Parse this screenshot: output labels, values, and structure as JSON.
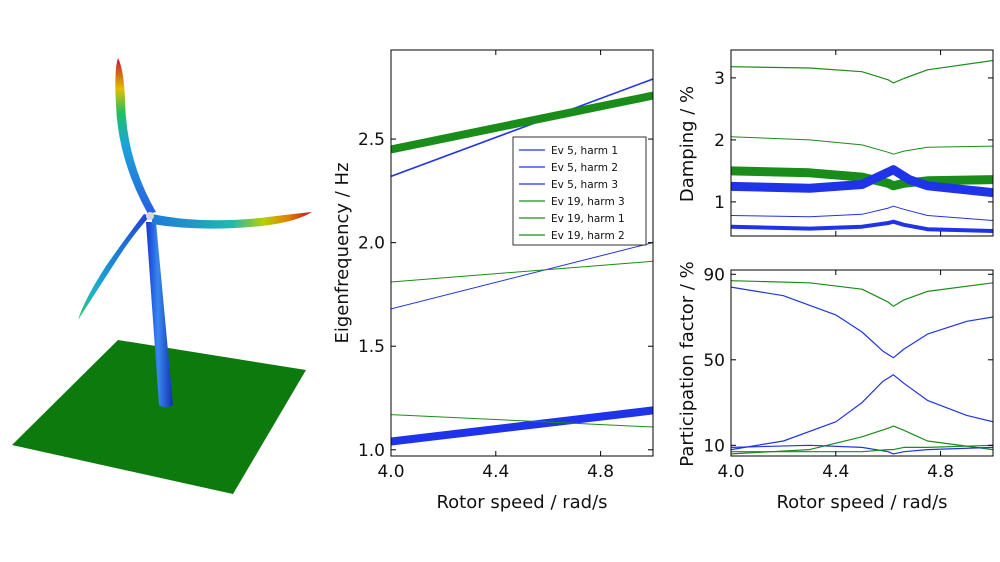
{
  "colors": {
    "blue": "#1f33e8",
    "green": "#1a8c1a",
    "ground": "#0d7a0d"
  },
  "turbine": {
    "icon": "wind-turbine-mode-shape-icon"
  },
  "chart_data": [
    {
      "type": "line",
      "ylabel": "Eigenfrequency / Hz",
      "xlabel": "Rotor speed / rad/s",
      "xlim": [
        4.0,
        5.0
      ],
      "ylim": [
        0.97,
        2.93
      ],
      "xticks": [
        "4.0",
        "4.4",
        "4.8"
      ],
      "xtick_values": [
        4.0,
        4.4,
        4.8
      ],
      "yticks": [
        "1.0",
        "1.5",
        "2.0",
        "2.5"
      ],
      "ytick_values": [
        1.0,
        1.5,
        2.0,
        2.5
      ],
      "legend_position": "upper-right",
      "legend": [
        "Ev 5, harm 1",
        "Ev 5, harm 2",
        "Ev 5, harm 3",
        "Ev 19, harm 3",
        "Ev 19, harm 1",
        "Ev 19, harm 2"
      ],
      "series": [
        {
          "name": "Ev 5, harm 1",
          "color": "blue",
          "width": 1.6,
          "x": [
            4.0,
            5.0
          ],
          "y": [
            2.32,
            2.79
          ]
        },
        {
          "name": "Ev 5, harm 2",
          "color": "blue",
          "width": 1.0,
          "x": [
            4.0,
            5.0
          ],
          "y": [
            1.68,
            2.0
          ]
        },
        {
          "name": "Ev 5, harm 3",
          "color": "blue",
          "width": 8,
          "x": [
            4.0,
            5.0
          ],
          "y": [
            1.04,
            1.19
          ]
        },
        {
          "name": "Ev 19, harm 3",
          "color": "green",
          "width": 8,
          "x": [
            4.0,
            5.0
          ],
          "y": [
            2.45,
            2.71
          ]
        },
        {
          "name": "Ev 19, harm 1",
          "color": "green",
          "width": 1.0,
          "x": [
            4.0,
            5.0
          ],
          "y": [
            1.81,
            1.91
          ]
        },
        {
          "name": "Ev 19, harm 2",
          "color": "green",
          "width": 1.0,
          "x": [
            4.0,
            5.0
          ],
          "y": [
            1.17,
            1.11
          ]
        }
      ]
    },
    {
      "type": "line",
      "ylabel": "Damping / %",
      "xlim": [
        4.0,
        5.0
      ],
      "ylim": [
        0.45,
        3.45
      ],
      "yticks": [
        "1",
        "2",
        "3"
      ],
      "ytick_values": [
        1,
        2,
        3
      ],
      "series": [
        {
          "color": "green",
          "width": 1.2,
          "x": [
            4.0,
            4.3,
            4.5,
            4.6,
            4.62,
            4.66,
            4.75,
            5.0
          ],
          "y": [
            3.18,
            3.16,
            3.1,
            2.97,
            2.92,
            2.99,
            3.13,
            3.28
          ]
        },
        {
          "color": "green",
          "width": 1.0,
          "x": [
            4.0,
            4.3,
            4.5,
            4.6,
            4.62,
            4.66,
            4.75,
            5.0
          ],
          "y": [
            2.05,
            2.0,
            1.92,
            1.8,
            1.77,
            1.82,
            1.88,
            1.9
          ]
        },
        {
          "color": "green",
          "width": 9,
          "x": [
            4.0,
            4.3,
            4.5,
            4.6,
            4.62,
            4.66,
            4.75,
            5.0
          ],
          "y": [
            1.5,
            1.47,
            1.4,
            1.3,
            1.26,
            1.3,
            1.34,
            1.36
          ]
        },
        {
          "color": "blue",
          "width": 9,
          "x": [
            4.0,
            4.3,
            4.5,
            4.56,
            4.62,
            4.68,
            4.75,
            5.0
          ],
          "y": [
            1.25,
            1.22,
            1.28,
            1.4,
            1.52,
            1.36,
            1.26,
            1.15
          ]
        },
        {
          "color": "blue",
          "width": 1.0,
          "x": [
            4.0,
            4.3,
            4.5,
            4.6,
            4.62,
            4.66,
            4.75,
            5.0
          ],
          "y": [
            0.78,
            0.76,
            0.8,
            0.9,
            0.93,
            0.88,
            0.78,
            0.7
          ]
        },
        {
          "color": "blue",
          "width": 4,
          "x": [
            4.0,
            4.3,
            4.5,
            4.6,
            4.62,
            4.66,
            4.75,
            5.0
          ],
          "y": [
            0.6,
            0.57,
            0.6,
            0.66,
            0.68,
            0.63,
            0.56,
            0.53
          ]
        }
      ]
    },
    {
      "type": "line",
      "ylabel": "Participation factor / %",
      "xlabel": "Rotor speed / rad/s",
      "xlim": [
        4.0,
        5.0
      ],
      "ylim": [
        5,
        92
      ],
      "xticks": [
        "4.0",
        "4.4",
        "4.8"
      ],
      "xtick_values": [
        4.0,
        4.4,
        4.8
      ],
      "yticks": [
        "10",
        "50",
        "90"
      ],
      "ytick_values": [
        10,
        50,
        90
      ],
      "series": [
        {
          "color": "green",
          "width": 1.2,
          "x": [
            4.0,
            4.3,
            4.5,
            4.6,
            4.62,
            4.66,
            4.75,
            5.0
          ],
          "y": [
            87,
            86,
            83,
            77,
            75,
            78,
            82,
            86
          ]
        },
        {
          "color": "blue",
          "width": 1.2,
          "x": [
            4.0,
            4.2,
            4.4,
            4.5,
            4.58,
            4.62,
            4.66,
            4.75,
            4.9,
            5.0
          ],
          "y": [
            84,
            80,
            71,
            63,
            54,
            51,
            55,
            62,
            68,
            70
          ]
        },
        {
          "color": "blue",
          "width": 1.2,
          "x": [
            4.0,
            4.2,
            4.4,
            4.5,
            4.58,
            4.62,
            4.66,
            4.75,
            4.9,
            5.0
          ],
          "y": [
            8,
            12,
            21,
            30,
            40,
            43,
            39,
            31,
            24,
            21
          ]
        },
        {
          "color": "green",
          "width": 1.2,
          "x": [
            4.0,
            4.3,
            4.5,
            4.6,
            4.62,
            4.66,
            4.75,
            5.0
          ],
          "y": [
            6,
            8,
            14,
            18,
            19,
            17,
            12,
            8
          ]
        },
        {
          "color": "blue",
          "width": 1.2,
          "x": [
            4.0,
            4.3,
            4.5,
            4.6,
            4.62,
            4.66,
            4.75,
            5.0
          ],
          "y": [
            9,
            10,
            9,
            7,
            6,
            7,
            8,
            9
          ]
        },
        {
          "color": "green",
          "width": 1.2,
          "x": [
            4.0,
            4.3,
            4.5,
            4.6,
            4.62,
            4.66,
            4.75,
            5.0
          ],
          "y": [
            7,
            7,
            7,
            8,
            8,
            9,
            9,
            10
          ]
        }
      ]
    }
  ]
}
